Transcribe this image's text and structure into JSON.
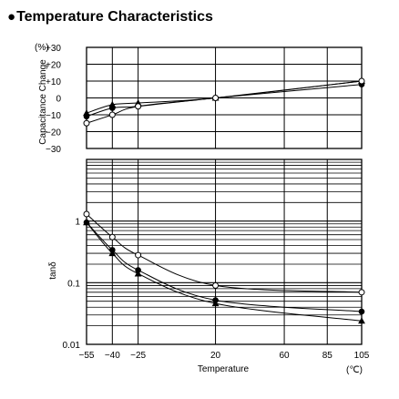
{
  "page": {
    "title_bullet": "●",
    "title": "Temperature Characteristics"
  },
  "chart_data": [
    {
      "type": "line",
      "name": "capacitance",
      "ylabel": "Capacitance Change",
      "yunit": "(%)",
      "xlim": [
        -55,
        105
      ],
      "ylim": [
        -30,
        30
      ],
      "x_grid": [
        -55,
        -40,
        -25,
        20,
        60,
        85,
        105
      ],
      "yticks": [
        30,
        20,
        10,
        0,
        -10,
        -20,
        -30
      ],
      "ytick_labels": [
        "+30",
        "+20",
        "+10",
        "0",
        "−10",
        "−20",
        "−30"
      ],
      "series": [
        {
          "marker": "filled-circle",
          "x": [
            -55,
            -40,
            -25,
            20,
            105
          ],
          "y": [
            -11,
            -6,
            -5,
            0,
            8
          ]
        },
        {
          "marker": "filled-triangle",
          "x": [
            -55,
            -40,
            -25,
            20,
            105
          ],
          "y": [
            -9,
            -4,
            -3,
            0,
            10
          ]
        },
        {
          "marker": "open-circle",
          "x": [
            -55,
            -40,
            -25,
            20,
            105
          ],
          "y": [
            -15,
            -10,
            -5,
            0,
            10
          ]
        }
      ]
    },
    {
      "type": "line",
      "name": "tan-delta",
      "ylabel": "tanδ",
      "xlabel": "Temperature",
      "xunit": "(℃)",
      "scale": "log",
      "xlim": [
        -55,
        105
      ],
      "ylim": [
        0.01,
        10
      ],
      "xticks": [
        -55,
        -40,
        -25,
        20,
        60,
        85,
        105
      ],
      "xtick_labels": [
        "−55",
        "−40",
        "−25",
        "20",
        "60",
        "85",
        "105"
      ],
      "yticks": [
        1,
        0.1,
        0.01
      ],
      "ytick_labels": [
        "1",
        "0.1",
        "0.01"
      ],
      "series": [
        {
          "marker": "open-circle",
          "x": [
            -55,
            -40,
            -25,
            20,
            105
          ],
          "y": [
            1.3,
            0.55,
            0.28,
            0.09,
            0.07
          ]
        },
        {
          "marker": "filled-circle",
          "x": [
            -55,
            -40,
            -25,
            20,
            105
          ],
          "y": [
            0.95,
            0.34,
            0.16,
            0.052,
            0.034
          ]
        },
        {
          "marker": "filled-triangle",
          "x": [
            -55,
            -40,
            -25,
            20,
            105
          ],
          "y": [
            0.95,
            0.3,
            0.14,
            0.046,
            0.024
          ]
        }
      ]
    }
  ]
}
